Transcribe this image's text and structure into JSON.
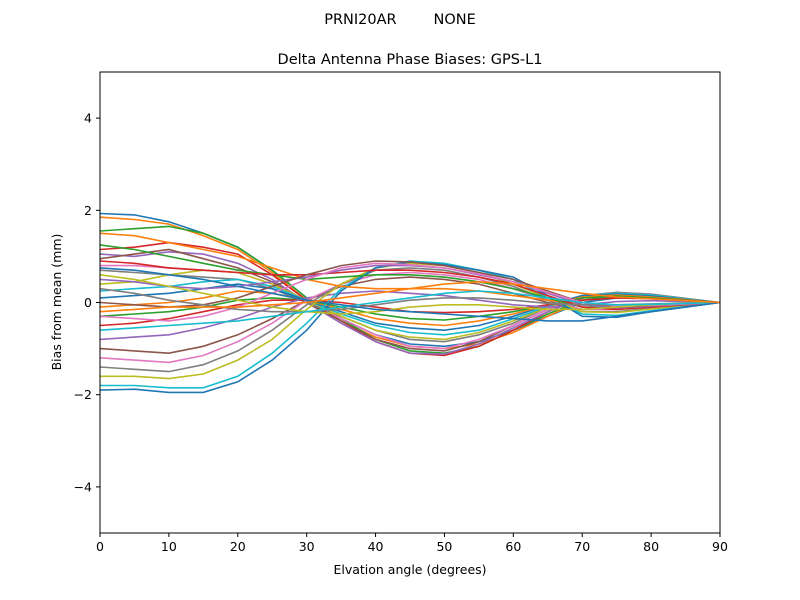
{
  "chart_data": {
    "type": "line",
    "suptitle": "PRNI20AR        NONE",
    "title": "Delta Antenna Phase Biases: GPS-L1",
    "xlabel": "Elvation angle (degrees)",
    "ylabel": "Bias from mean (mm)",
    "xlim": [
      0,
      90
    ],
    "ylim": [
      -5,
      5
    ],
    "xticks": [
      0,
      10,
      20,
      30,
      40,
      50,
      60,
      70,
      80,
      90
    ],
    "yticks": [
      -4,
      -2,
      0,
      2,
      4
    ],
    "xtick_labels": [
      "0",
      "10",
      "20",
      "30",
      "40",
      "50",
      "60",
      "70",
      "80",
      "90"
    ],
    "ytick_labels": [
      "−4",
      "−2",
      "0",
      "2",
      "4"
    ],
    "grid": false,
    "legend": "none",
    "x": [
      0,
      5,
      10,
      15,
      20,
      25,
      30,
      35,
      40,
      45,
      50,
      55,
      60,
      65,
      70,
      75,
      80,
      85,
      90
    ],
    "colors": [
      "#1f77b4",
      "#ff7f0e",
      "#2ca02c",
      "#d62728",
      "#9467bd",
      "#8c564b",
      "#e377c2",
      "#7f7f7f",
      "#bcbd22",
      "#17becf"
    ],
    "series": [
      {
        "values": [
          1.93,
          1.9,
          1.75,
          1.5,
          1.2,
          0.7,
          0.1,
          -0.35,
          -0.7,
          -0.9,
          -0.95,
          -0.85,
          -0.6,
          -0.3,
          0.0,
          0.1,
          0.1,
          0.05,
          0.0
        ]
      },
      {
        "values": [
          1.85,
          1.8,
          1.7,
          1.45,
          1.15,
          0.65,
          0.05,
          -0.4,
          -0.75,
          -0.95,
          -1.0,
          -0.9,
          -0.65,
          -0.3,
          0.05,
          0.12,
          0.1,
          0.05,
          0.0
        ]
      },
      {
        "values": [
          1.55,
          1.6,
          1.65,
          1.5,
          1.2,
          0.7,
          0.1,
          -0.35,
          -0.8,
          -1.05,
          -1.1,
          -0.95,
          -0.6,
          -0.25,
          0.05,
          0.15,
          0.12,
          0.06,
          0.0
        ]
      },
      {
        "values": [
          1.15,
          1.2,
          1.3,
          1.2,
          1.05,
          0.6,
          0.05,
          -0.4,
          -0.85,
          -1.1,
          -1.15,
          -0.95,
          -0.6,
          -0.2,
          0.1,
          0.2,
          0.15,
          0.08,
          0.0
        ]
      },
      {
        "values": [
          1.05,
          1.0,
          1.1,
          1.05,
          0.85,
          0.5,
          0.0,
          -0.45,
          -0.85,
          -1.1,
          -1.12,
          -0.9,
          -0.55,
          -0.2,
          0.1,
          0.18,
          0.14,
          0.07,
          0.0
        ]
      },
      {
        "values": [
          0.95,
          1.05,
          1.15,
          0.95,
          0.75,
          0.45,
          0.0,
          -0.4,
          -0.8,
          -1.0,
          -1.05,
          -0.85,
          -0.5,
          -0.15,
          0.1,
          0.2,
          0.15,
          0.08,
          0.0
        ]
      },
      {
        "values": [
          0.8,
          0.8,
          0.75,
          0.7,
          0.65,
          0.4,
          0.05,
          -0.35,
          -0.7,
          -0.95,
          -1.0,
          -0.8,
          -0.5,
          -0.15,
          0.12,
          0.22,
          0.18,
          0.09,
          0.0
        ]
      },
      {
        "values": [
          0.7,
          0.65,
          0.6,
          0.55,
          0.5,
          0.3,
          0.0,
          -0.3,
          -0.6,
          -0.8,
          -0.85,
          -0.7,
          -0.45,
          -0.1,
          0.15,
          0.22,
          0.18,
          0.09,
          0.0
        ]
      },
      {
        "values": [
          0.4,
          0.45,
          0.6,
          0.7,
          0.65,
          0.4,
          0.05,
          -0.3,
          -0.6,
          -0.75,
          -0.8,
          -0.65,
          -0.4,
          -0.1,
          0.15,
          0.2,
          0.16,
          0.08,
          0.0
        ]
      },
      {
        "values": [
          0.25,
          0.3,
          0.35,
          0.45,
          0.5,
          0.35,
          0.05,
          -0.25,
          -0.5,
          -0.65,
          -0.7,
          -0.6,
          -0.35,
          -0.08,
          0.15,
          0.2,
          0.16,
          0.08,
          0.0
        ]
      },
      {
        "values": [
          0.1,
          0.15,
          0.2,
          0.3,
          0.4,
          0.3,
          0.05,
          -0.2,
          -0.45,
          -0.55,
          -0.6,
          -0.5,
          -0.3,
          -0.05,
          0.15,
          0.18,
          0.14,
          0.07,
          0.0
        ]
      },
      {
        "values": [
          -0.1,
          -0.05,
          0.0,
          0.1,
          0.25,
          0.2,
          0.05,
          -0.15,
          -0.35,
          -0.45,
          -0.5,
          -0.4,
          -0.25,
          -0.05,
          0.12,
          0.16,
          0.12,
          0.06,
          0.0
        ]
      },
      {
        "values": [
          -0.3,
          -0.25,
          -0.2,
          -0.1,
          0.05,
          0.1,
          0.05,
          -0.1,
          -0.25,
          -0.35,
          -0.38,
          -0.3,
          -0.2,
          -0.05,
          0.1,
          0.14,
          0.1,
          0.05,
          0.0
        ]
      },
      {
        "values": [
          -0.5,
          -0.45,
          -0.35,
          -0.2,
          -0.05,
          0.05,
          0.05,
          0.0,
          -0.1,
          -0.2,
          -0.22,
          -0.2,
          -0.15,
          -0.05,
          0.05,
          0.1,
          0.08,
          0.04,
          0.0
        ]
      },
      {
        "values": [
          -0.8,
          -0.75,
          -0.7,
          -0.55,
          -0.35,
          -0.1,
          0.1,
          0.2,
          0.25,
          0.2,
          0.15,
          0.05,
          -0.05,
          -0.1,
          -0.05,
          0.02,
          0.04,
          0.02,
          0.0
        ]
      },
      {
        "values": [
          -1.0,
          -1.05,
          -1.1,
          -0.95,
          -0.7,
          -0.35,
          0.05,
          0.35,
          0.5,
          0.55,
          0.5,
          0.4,
          0.2,
          0.0,
          -0.15,
          -0.1,
          -0.05,
          -0.02,
          0.0
        ]
      },
      {
        "values": [
          -1.2,
          -1.25,
          -1.3,
          -1.15,
          -0.85,
          -0.45,
          0.05,
          0.4,
          0.6,
          0.65,
          0.6,
          0.5,
          0.3,
          0.05,
          -0.15,
          -0.15,
          -0.08,
          -0.04,
          0.0
        ]
      },
      {
        "values": [
          -1.4,
          -1.45,
          -1.5,
          -1.35,
          -1.05,
          -0.6,
          -0.05,
          0.4,
          0.7,
          0.75,
          0.7,
          0.55,
          0.35,
          0.05,
          -0.2,
          -0.2,
          -0.12,
          -0.06,
          0.0
        ]
      },
      {
        "values": [
          -1.6,
          -1.6,
          -1.65,
          -1.55,
          -1.25,
          -0.8,
          -0.15,
          0.4,
          0.75,
          0.85,
          0.8,
          0.65,
          0.4,
          0.1,
          -0.2,
          -0.22,
          -0.14,
          -0.07,
          0.0
        ]
      },
      {
        "values": [
          -1.8,
          -1.8,
          -1.85,
          -1.85,
          -1.6,
          -1.1,
          -0.45,
          0.3,
          0.75,
          0.9,
          0.85,
          0.7,
          0.5,
          0.1,
          -0.25,
          -0.28,
          -0.18,
          -0.09,
          0.0
        ]
      },
      {
        "values": [
          -1.9,
          -1.88,
          -1.95,
          -1.95,
          -1.72,
          -1.25,
          -0.6,
          0.25,
          0.75,
          0.88,
          0.82,
          0.7,
          0.55,
          0.15,
          -0.3,
          -0.32,
          -0.2,
          -0.1,
          0.0
        ]
      },
      {
        "values": [
          1.5,
          1.45,
          1.3,
          1.15,
          1.0,
          0.75,
          0.5,
          0.35,
          0.3,
          0.3,
          0.3,
          0.25,
          0.15,
          0.05,
          -0.05,
          -0.08,
          -0.06,
          -0.03,
          0.0
        ]
      },
      {
        "values": [
          1.25,
          1.15,
          1.0,
          0.85,
          0.7,
          0.6,
          0.5,
          0.55,
          0.6,
          0.6,
          0.55,
          0.45,
          0.3,
          0.1,
          -0.1,
          -0.12,
          -0.08,
          -0.04,
          0.0
        ]
      },
      {
        "values": [
          0.9,
          0.85,
          0.75,
          0.7,
          0.65,
          0.6,
          0.6,
          0.65,
          0.7,
          0.7,
          0.65,
          0.55,
          0.4,
          0.15,
          -0.1,
          -0.15,
          -0.1,
          -0.05,
          0.0
        ]
      },
      {
        "values": [
          0.5,
          0.45,
          0.35,
          0.3,
          0.35,
          0.45,
          0.55,
          0.7,
          0.8,
          0.8,
          0.75,
          0.6,
          0.45,
          0.2,
          -0.05,
          -0.12,
          -0.08,
          -0.04,
          0.0
        ]
      },
      {
        "values": [
          0.0,
          -0.05,
          -0.1,
          -0.05,
          0.1,
          0.35,
          0.6,
          0.8,
          0.9,
          0.88,
          0.8,
          0.65,
          0.5,
          0.25,
          0.0,
          -0.1,
          -0.07,
          -0.03,
          0.0
        ]
      },
      {
        "values": [
          -0.3,
          -0.35,
          -0.4,
          -0.3,
          -0.1,
          0.2,
          0.5,
          0.75,
          0.85,
          0.82,
          0.75,
          0.62,
          0.45,
          0.22,
          0.0,
          -0.08,
          -0.06,
          -0.03,
          0.0
        ]
      },
      {
        "values": [
          0.3,
          0.2,
          0.05,
          -0.05,
          -0.15,
          -0.2,
          -0.2,
          -0.15,
          -0.05,
          0.05,
          0.1,
          0.1,
          0.05,
          -0.02,
          -0.05,
          -0.05,
          -0.03,
          -0.01,
          0.0
        ]
      },
      {
        "values": [
          0.6,
          0.5,
          0.35,
          0.2,
          0.05,
          -0.1,
          -0.2,
          -0.25,
          -0.2,
          -0.1,
          -0.05,
          -0.05,
          -0.1,
          -0.15,
          -0.15,
          -0.1,
          -0.05,
          -0.02,
          0.0
        ]
      },
      {
        "values": [
          -0.6,
          -0.55,
          -0.5,
          -0.45,
          -0.4,
          -0.3,
          -0.2,
          -0.1,
          0.0,
          0.1,
          0.2,
          0.25,
          0.2,
          0.1,
          0.0,
          -0.05,
          -0.04,
          -0.02,
          0.0
        ]
      },
      {
        "values": [
          0.75,
          0.7,
          0.6,
          0.5,
          0.35,
          0.2,
          0.05,
          -0.05,
          -0.15,
          -0.2,
          -0.25,
          -0.3,
          -0.35,
          -0.4,
          -0.4,
          -0.3,
          -0.2,
          -0.1,
          0.0
        ]
      },
      {
        "values": [
          -0.2,
          -0.15,
          -0.1,
          -0.1,
          -0.1,
          -0.05,
          0.0,
          0.1,
          0.2,
          0.3,
          0.4,
          0.45,
          0.4,
          0.3,
          0.2,
          0.12,
          0.08,
          0.04,
          0.0
        ]
      }
    ]
  }
}
